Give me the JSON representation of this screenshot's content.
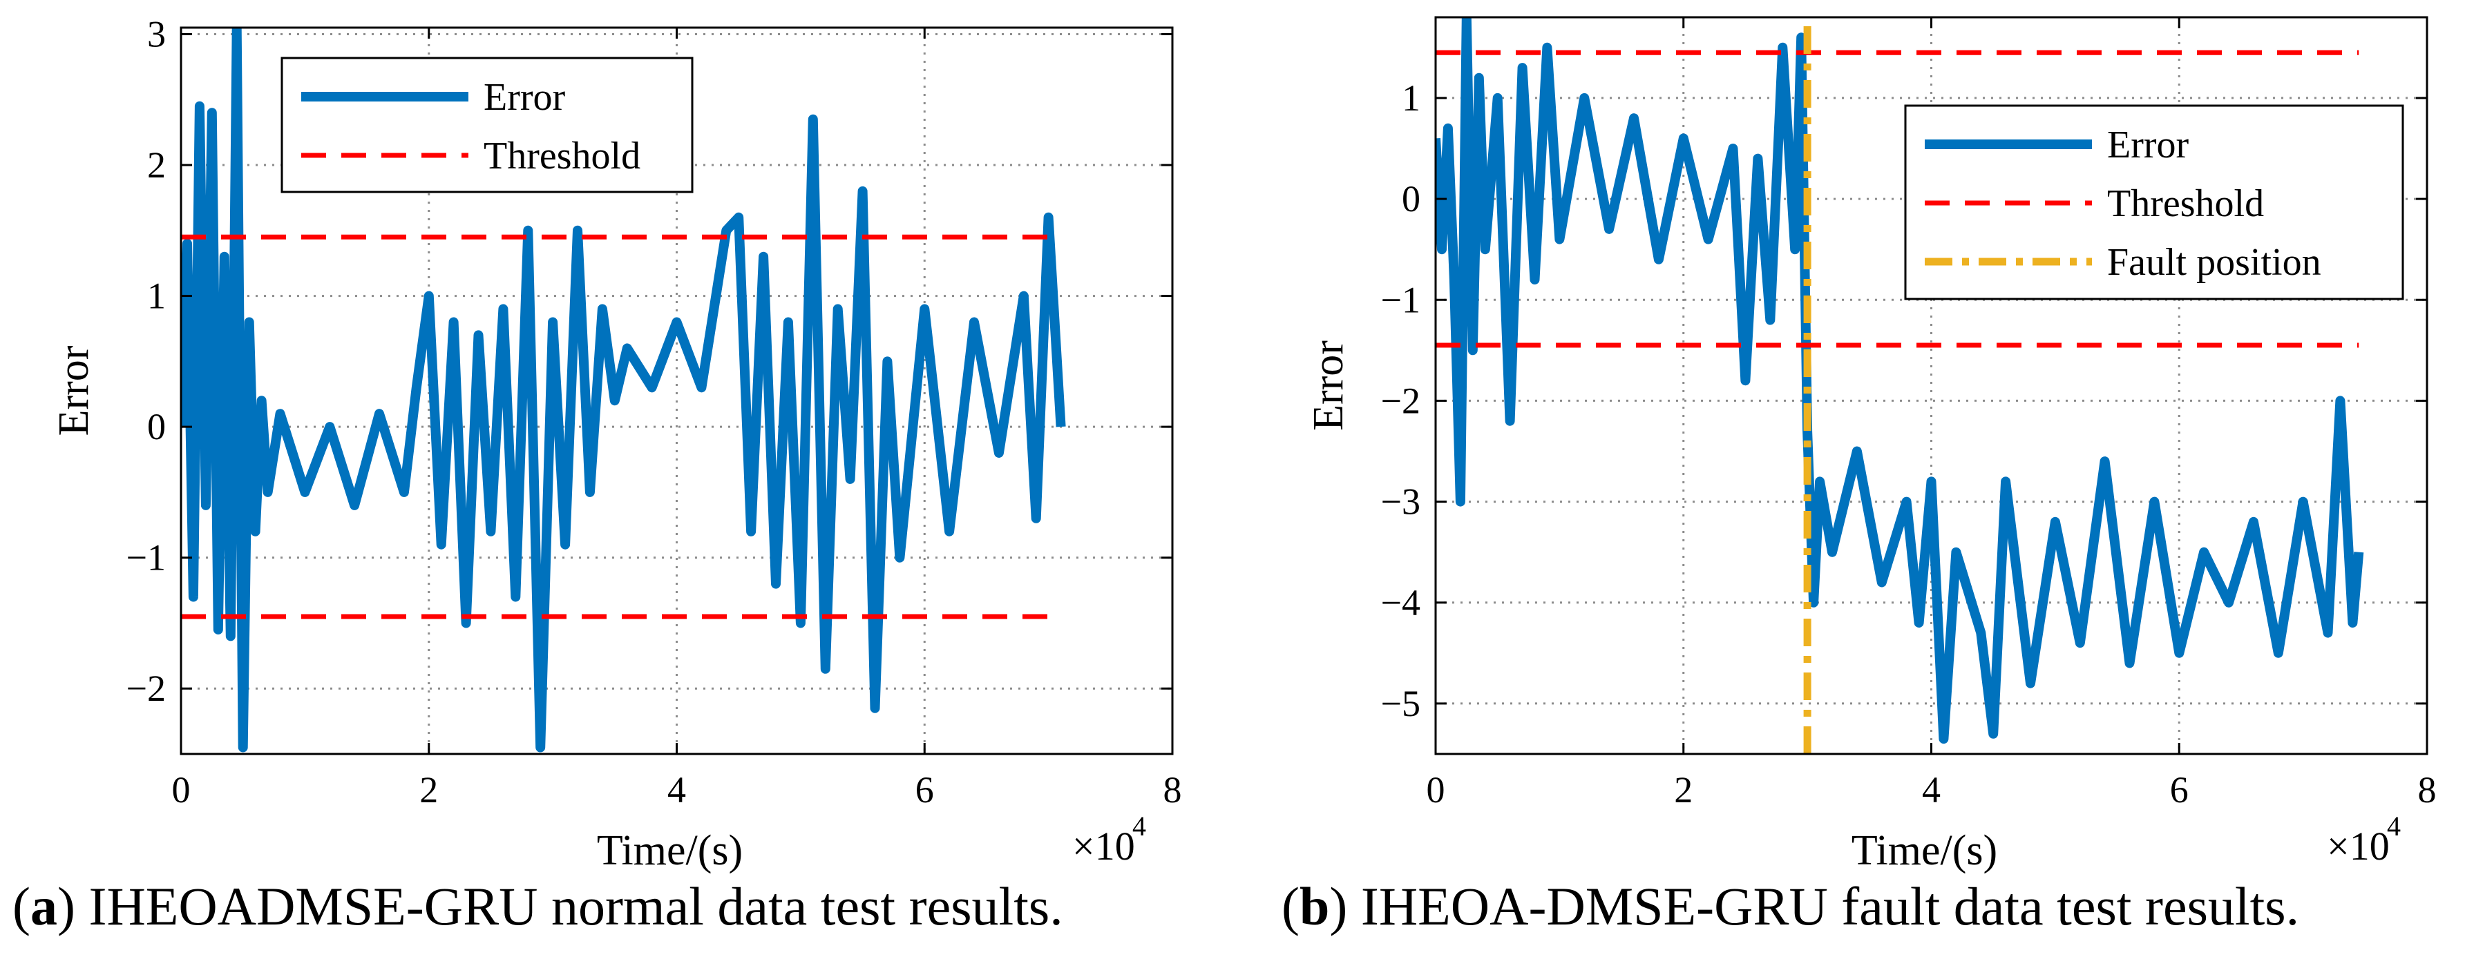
{
  "colors": {
    "error": "#0072BD",
    "threshold": "#FF0000",
    "fault": "#EDB120",
    "grid": "#8c8c8c"
  },
  "captions": {
    "a": {
      "letter": "a",
      "text": " IHEOADMSE-GRU normal data test results."
    },
    "b": {
      "letter": "b",
      "text": " IHEOA-DMSE-GRU fault data test results."
    }
  },
  "chart_data": [
    {
      "id": "a",
      "type": "line",
      "xlabel": "Time/(s)",
      "ylabel": "Error",
      "x_multiplier_label": "×10",
      "x_multiplier_exp": "4",
      "xlim": [
        0,
        80000
      ],
      "ylim": [
        -2.5,
        3.05
      ],
      "xticks": [
        0,
        20000,
        40000,
        60000,
        80000
      ],
      "xtick_labels": [
        "0",
        "2",
        "4",
        "6",
        "8"
      ],
      "yticks": [
        -2,
        -1,
        0,
        1,
        2,
        3
      ],
      "ytick_labels": [
        "−2",
        "−1",
        "0",
        "1",
        "2",
        "3"
      ],
      "grid": true,
      "legend_position": "top-left",
      "legend": [
        "Error",
        "Threshold"
      ],
      "series": [
        {
          "name": "Error",
          "style": "solid",
          "x": [
            0,
            500,
            1000,
            1500,
            2000,
            2500,
            3000,
            3500,
            4000,
            4500,
            5000,
            5500,
            6000,
            6500,
            7000,
            8000,
            10000,
            12000,
            14000,
            16000,
            18000,
            19000,
            20000,
            21000,
            22000,
            23000,
            24000,
            25000,
            26000,
            27000,
            28000,
            29000,
            30000,
            31000,
            32000,
            33000,
            34000,
            35000,
            36000,
            38000,
            40000,
            42000,
            44000,
            45000,
            46000,
            47000,
            48000,
            49000,
            50000,
            51000,
            52000,
            53000,
            54000,
            55000,
            56000,
            57000,
            58000,
            60000,
            62000,
            64000,
            66000,
            68000,
            69000,
            70000,
            71000
          ],
          "values": [
            0.0,
            1.4,
            -1.3,
            2.45,
            -0.6,
            2.4,
            -1.55,
            1.3,
            -1.6,
            3.05,
            -2.45,
            0.8,
            -0.8,
            0.2,
            -0.5,
            0.1,
            -0.5,
            0.0,
            -0.6,
            0.1,
            -0.5,
            0.3,
            1.0,
            -0.9,
            0.8,
            -1.5,
            0.7,
            -0.8,
            0.9,
            -1.3,
            1.5,
            -2.45,
            0.8,
            -0.9,
            1.5,
            -0.5,
            0.9,
            0.2,
            0.6,
            0.3,
            0.8,
            0.3,
            1.5,
            1.6,
            -0.8,
            1.3,
            -1.2,
            0.8,
            -1.5,
            2.35,
            -1.85,
            0.9,
            -0.4,
            1.8,
            -2.15,
            0.5,
            -1.0,
            0.9,
            -0.8,
            0.8,
            -0.2,
            1.0,
            -0.7,
            1.6,
            0.0
          ]
        },
        {
          "name": "Threshold",
          "style": "dashed",
          "x": [
            0,
            70000
          ],
          "values": [
            1.45,
            1.45
          ]
        },
        {
          "name": "Threshold",
          "style": "dashed",
          "x": [
            0,
            70000
          ],
          "values": [
            -1.45,
            -1.45
          ]
        }
      ]
    },
    {
      "id": "b",
      "type": "line",
      "xlabel": "Time/(s)",
      "ylabel": "Error",
      "x_multiplier_label": "×10",
      "x_multiplier_exp": "4",
      "xlim": [
        0,
        80000
      ],
      "ylim": [
        -5.5,
        1.8
      ],
      "xticks": [
        0,
        20000,
        40000,
        60000,
        80000
      ],
      "xtick_labels": [
        "0",
        "2",
        "4",
        "6",
        "8"
      ],
      "yticks": [
        -5,
        -4,
        -3,
        -2,
        -1,
        0,
        1
      ],
      "ytick_labels": [
        "−5",
        "−4",
        "−3",
        "−2",
        "−1",
        "0",
        "1"
      ],
      "grid": true,
      "legend_position": "top-right",
      "legend": [
        "Error",
        "Threshold",
        "Fault position"
      ],
      "series": [
        {
          "name": "Error",
          "style": "solid",
          "x": [
            0,
            500,
            1000,
            1500,
            2000,
            2500,
            3000,
            3500,
            4000,
            5000,
            6000,
            7000,
            8000,
            9000,
            10000,
            12000,
            14000,
            16000,
            18000,
            20000,
            22000,
            24000,
            25000,
            26000,
            27000,
            28000,
            29000,
            29500,
            30000,
            30500,
            31000,
            32000,
            34000,
            36000,
            38000,
            39000,
            40000,
            41000,
            42000,
            44000,
            45000,
            46000,
            48000,
            50000,
            52000,
            54000,
            56000,
            58000,
            60000,
            62000,
            64000,
            66000,
            68000,
            70000,
            72000,
            73000,
            74000,
            74500
          ],
          "values": [
            0.6,
            -0.5,
            0.7,
            -0.8,
            -3.0,
            1.8,
            -1.5,
            1.2,
            -0.5,
            1.0,
            -2.2,
            1.3,
            -0.8,
            1.5,
            -0.4,
            1.0,
            -0.3,
            0.8,
            -0.6,
            0.6,
            -0.4,
            0.5,
            -1.8,
            0.4,
            -1.2,
            1.5,
            -0.5,
            1.6,
            -2.3,
            -4.0,
            -2.8,
            -3.5,
            -2.5,
            -3.8,
            -3.0,
            -4.2,
            -2.8,
            -5.35,
            -3.5,
            -4.3,
            -5.3,
            -2.8,
            -4.8,
            -3.2,
            -4.4,
            -2.6,
            -4.6,
            -3.0,
            -4.5,
            -3.5,
            -4.0,
            -3.2,
            -4.5,
            -3.0,
            -4.3,
            -2.0,
            -4.2,
            -3.5
          ]
        },
        {
          "name": "Threshold",
          "style": "dashed",
          "x": [
            0,
            74500
          ],
          "values": [
            1.45,
            1.45
          ]
        },
        {
          "name": "Threshold",
          "style": "dashed",
          "x": [
            0,
            74500
          ],
          "values": [
            -1.45,
            -1.45
          ]
        },
        {
          "name": "Fault position",
          "style": "dashdot",
          "x": [
            30000,
            30000
          ],
          "values": [
            -5.5,
            1.8
          ]
        }
      ]
    }
  ]
}
